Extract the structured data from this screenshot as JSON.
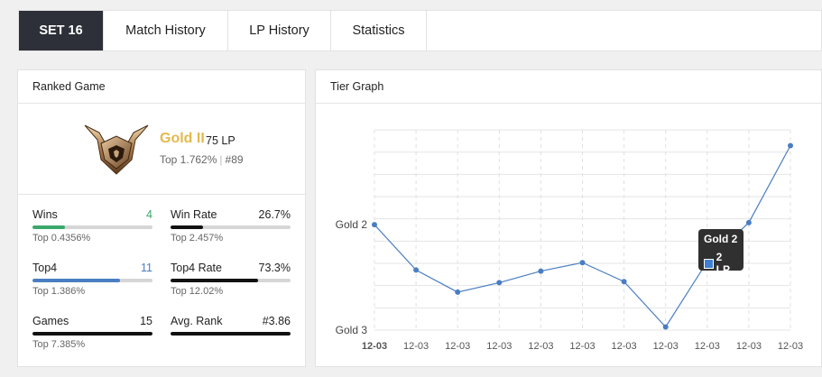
{
  "tabs": [
    {
      "label": "SET 16"
    },
    {
      "label": "Match History"
    },
    {
      "label": "LP History"
    },
    {
      "label": "Statistics"
    }
  ],
  "ranked": {
    "title": "Ranked Game",
    "rank": "Gold II",
    "lp": "75 LP",
    "top_percent": "Top 1.762%",
    "position": "#89",
    "stats": {
      "wins": {
        "label": "Wins",
        "value": "4",
        "sub": "Top 0.4356%",
        "fraction": 0.27,
        "color": "#3aa86b"
      },
      "win_rate": {
        "label": "Win Rate",
        "value": "26.7%",
        "sub": "Top 2.457%",
        "fraction": 0.267,
        "color": "#111111"
      },
      "top4": {
        "label": "Top4",
        "value": "11",
        "sub": "Top 1.386%",
        "fraction": 0.73,
        "color": "#4a7ec2"
      },
      "top4_rate": {
        "label": "Top4 Rate",
        "value": "73.3%",
        "sub": "Top 12.02%",
        "fraction": 0.733,
        "color": "#111111"
      },
      "games": {
        "label": "Games",
        "value": "15",
        "sub": "Top 7.385%",
        "fraction": 1.0,
        "color": "#111111"
      },
      "avg_rank": {
        "label": "Avg. Rank",
        "value": "#3.86",
        "sub": "",
        "fraction": 1.0,
        "color": "#111111"
      }
    }
  },
  "tier": {
    "title": "Tier Graph",
    "tooltip": {
      "title": "Gold 2",
      "value": "2 LP"
    }
  },
  "chart_data": {
    "type": "line",
    "title": "",
    "x": [
      "12-03",
      "12-03",
      "12-03",
      "12-03",
      "12-03",
      "12-03",
      "12-03",
      "12-03",
      "12-03",
      "12-03",
      "12-03"
    ],
    "y_tick_labels": [
      "Gold 2",
      "Gold 3"
    ],
    "series": [
      {
        "values": [
          2,
          1.57,
          1.36,
          1.45,
          1.56,
          1.64,
          1.46,
          1.03,
          1.65,
          2.02,
          2.75
        ]
      }
    ],
    "ylim": [
      1.0,
      2.9
    ],
    "grid": true,
    "color": "#4a7ec2"
  }
}
